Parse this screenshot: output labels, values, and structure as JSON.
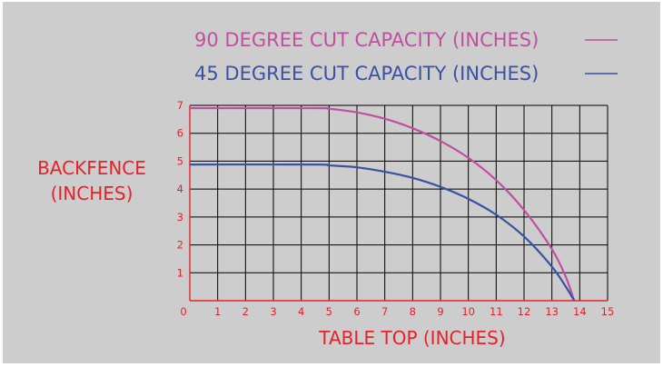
{
  "chart_data": {
    "type": "line",
    "xlabel": "TABLE TOP (INCHES)",
    "ylabel": [
      "BACKFENCE",
      "(INCHES)"
    ],
    "xlim": [
      0,
      15
    ],
    "ylim": [
      0,
      7
    ],
    "x_ticks": [
      0,
      1,
      2,
      3,
      4,
      5,
      6,
      7,
      8,
      9,
      10,
      11,
      12,
      13,
      14,
      15
    ],
    "y_ticks": [
      1,
      2,
      3,
      4,
      5,
      6,
      7
    ],
    "grid": true,
    "legend_placement": "top",
    "series": [
      {
        "name": "90 DEGREE CUT CAPACITY (INCHES)",
        "color": "#c0509f",
        "x": [
          0,
          4.5,
          5,
          6,
          7,
          8,
          9,
          10,
          11,
          12,
          13,
          13.5,
          13.8
        ],
        "y": [
          6.9,
          6.9,
          6.88,
          6.75,
          6.52,
          6.18,
          5.72,
          5.12,
          4.32,
          3.25,
          1.85,
          0.85,
          0
        ]
      },
      {
        "name": "45 DEGREE CUT CAPACITY (INCHES)",
        "color": "#3b51a3",
        "x": [
          0,
          4.5,
          5,
          6,
          7,
          8,
          9,
          10,
          11,
          12,
          13,
          13.5,
          13.8
        ],
        "y": [
          4.88,
          4.88,
          4.85,
          4.78,
          4.62,
          4.4,
          4.08,
          3.65,
          3.08,
          2.3,
          1.22,
          0.5,
          0
        ]
      }
    ]
  },
  "colors": {
    "background": "#cdcdcd",
    "axis_text": "#e8202a",
    "grid": "#000000"
  }
}
